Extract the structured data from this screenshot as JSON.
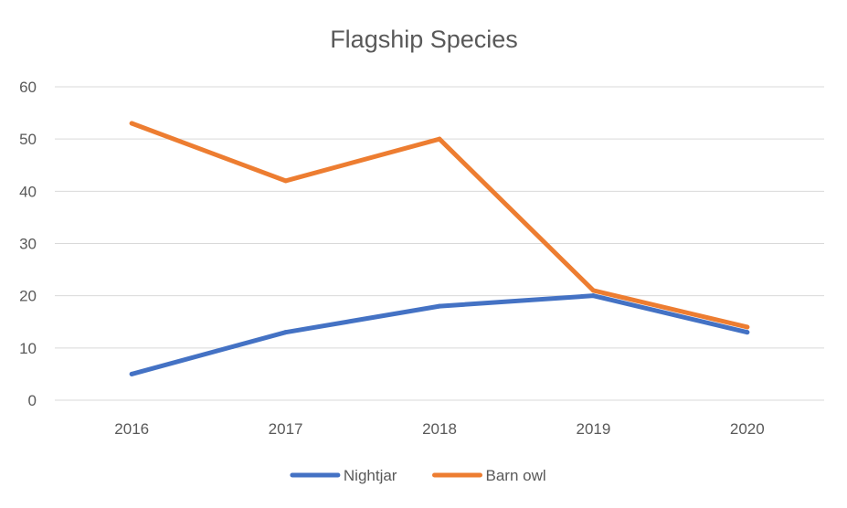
{
  "chart_data": {
    "type": "line",
    "title": "Flagship Species",
    "xlabel": "",
    "ylabel": "",
    "categories": [
      "2016",
      "2017",
      "2018",
      "2019",
      "2020"
    ],
    "series": [
      {
        "name": "Nightjar",
        "color": "#4472c4",
        "values": [
          5,
          13,
          18,
          20,
          13
        ]
      },
      {
        "name": "Barn owl",
        "color": "#ed7d31",
        "values": [
          53,
          42,
          50,
          21,
          14
        ]
      }
    ],
    "ylim": [
      0,
      60
    ],
    "yticks": [
      "0",
      "10",
      "20",
      "30",
      "40",
      "50",
      "60"
    ],
    "grid": true,
    "legend": "bottom"
  }
}
